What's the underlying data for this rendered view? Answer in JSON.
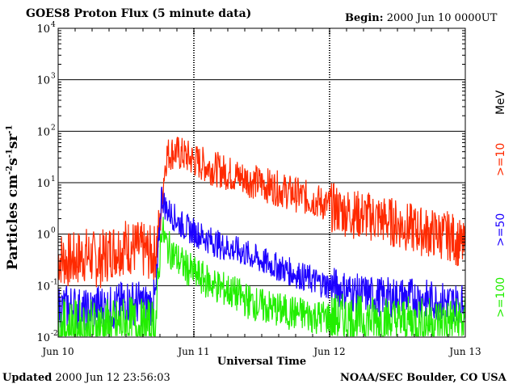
{
  "header": {
    "title": "GOES8 Proton Flux (5 minute data)",
    "begin_label": "Begin:",
    "begin_value": "2000 Jun 10 0000UT"
  },
  "footer": {
    "updated_label": "Updated",
    "updated_value": "2000 Jun 12 23:56:03",
    "source": "NOAA/SEC Boulder, CO USA"
  },
  "chart_data": {
    "type": "line",
    "title": "GOES8 Proton Flux (5 minute data)",
    "xlabel": "Universal Time",
    "ylabel": "Particles cm-2s-1sr-1",
    "yscale": "log",
    "ylim": [
      0.01,
      10000
    ],
    "xlim_days": [
      0,
      3
    ],
    "x_ticks": [
      {
        "day": 0,
        "label": "Jun 10"
      },
      {
        "day": 1,
        "label": "Jun 11"
      },
      {
        "day": 2,
        "label": "Jun 12"
      },
      {
        "day": 3,
        "label": "Jun 13"
      }
    ],
    "y_ticks": [
      {
        "value": 0.01,
        "base": "10",
        "exp": "-2"
      },
      {
        "value": 0.1,
        "base": "10",
        "exp": "-1"
      },
      {
        "value": 1,
        "base": "10",
        "exp": "0"
      },
      {
        "value": 10,
        "base": "10",
        "exp": "1"
      },
      {
        "value": 100,
        "base": "10",
        "exp": "2"
      },
      {
        "value": 1000,
        "base": "10",
        "exp": "3"
      },
      {
        "value": 10000,
        "base": "10",
        "exp": "4"
      }
    ],
    "grid": true,
    "unit_label": "MeV",
    "series": [
      {
        "name": ">=10",
        "color": "#ff2a00",
        "x": [
          0.0,
          0.1,
          0.2,
          0.3,
          0.4,
          0.5,
          0.6,
          0.65,
          0.7,
          0.72,
          0.75,
          0.78,
          0.8,
          0.85,
          0.9,
          0.95,
          1.0,
          1.1,
          1.2,
          1.3,
          1.4,
          1.5,
          1.6,
          1.7,
          1.8,
          1.9,
          2.0,
          2.1,
          2.2,
          2.3,
          2.4,
          2.5,
          2.6,
          2.7,
          2.8,
          2.9,
          3.0
        ],
        "values": [
          0.35,
          0.3,
          0.4,
          0.3,
          0.5,
          0.6,
          0.5,
          0.45,
          0.4,
          0.5,
          1.5,
          15,
          35,
          40,
          36,
          32,
          27,
          21,
          17,
          14,
          11.5,
          9.5,
          8,
          6.5,
          5.4,
          4.5,
          3.4,
          2.8,
          2.4,
          2.2,
          1.9,
          1.6,
          1.3,
          1.1,
          1.0,
          0.9,
          0.5
        ]
      },
      {
        "name": ">=50",
        "color": "#1c00ff",
        "x": [
          0.0,
          0.1,
          0.2,
          0.3,
          0.4,
          0.5,
          0.6,
          0.65,
          0.7,
          0.72,
          0.74,
          0.76,
          0.78,
          0.8,
          0.85,
          0.9,
          0.95,
          1.0,
          1.1,
          1.2,
          1.3,
          1.4,
          1.5,
          1.6,
          1.7,
          1.8,
          1.9,
          2.0,
          2.2,
          2.4,
          2.6,
          2.8,
          3.0
        ],
        "values": [
          0.035,
          0.04,
          0.03,
          0.04,
          0.035,
          0.05,
          0.045,
          0.04,
          0.045,
          0.06,
          0.5,
          6,
          4,
          3,
          2.2,
          1.6,
          1.3,
          1.1,
          0.8,
          0.6,
          0.5,
          0.4,
          0.3,
          0.24,
          0.19,
          0.15,
          0.12,
          0.1,
          0.07,
          0.06,
          0.06,
          0.05,
          0.045
        ]
      },
      {
        "name": ">=100",
        "color": "#22ee00",
        "x": [
          0.0,
          0.1,
          0.2,
          0.3,
          0.4,
          0.5,
          0.6,
          0.65,
          0.7,
          0.72,
          0.74,
          0.76,
          0.78,
          0.8,
          0.85,
          0.9,
          0.95,
          1.0,
          1.1,
          1.2,
          1.3,
          1.4,
          1.5,
          1.6,
          1.7,
          1.8,
          1.9,
          2.0,
          2.2,
          2.4,
          2.6,
          2.8,
          3.0
        ],
        "values": [
          0.015,
          0.016,
          0.014,
          0.017,
          0.015,
          0.018,
          0.016,
          0.015,
          0.016,
          0.02,
          0.12,
          1.4,
          0.9,
          0.6,
          0.4,
          0.28,
          0.22,
          0.17,
          0.12,
          0.09,
          0.07,
          0.05,
          0.04,
          0.035,
          0.03,
          0.028,
          0.025,
          0.024,
          0.022,
          0.021,
          0.02,
          0.02,
          0.02
        ]
      }
    ]
  }
}
